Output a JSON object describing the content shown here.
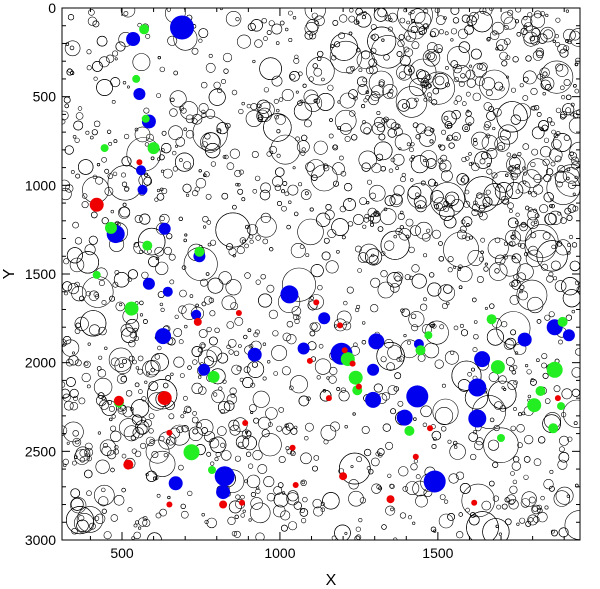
{
  "chart_data": {
    "type": "scatter",
    "xlabel": "X",
    "ylabel": "Y",
    "xlim": [
      310,
      1950
    ],
    "ylim": [
      3000,
      0
    ],
    "y_inverted": true,
    "xticks": [
      500,
      1000,
      1500
    ],
    "yticks": [
      0,
      500,
      1000,
      1500,
      2000,
      2500,
      3000
    ],
    "grid": false,
    "legend": "none",
    "colors": {
      "outline": "#000000",
      "blue": "#0000ee",
      "green": "#22ee22",
      "red": "#ee0000"
    },
    "series": [
      {
        "color": "blue",
        "points": [
          {
            "x": 535,
            "y": 175,
            "r": 7
          },
          {
            "x": 690,
            "y": 110,
            "r": 12
          },
          {
            "x": 555,
            "y": 485,
            "r": 6
          },
          {
            "x": 585,
            "y": 640,
            "r": 7
          },
          {
            "x": 560,
            "y": 915,
            "r": 5
          },
          {
            "x": 565,
            "y": 1025,
            "r": 5
          },
          {
            "x": 480,
            "y": 1275,
            "r": 9
          },
          {
            "x": 635,
            "y": 1245,
            "r": 6
          },
          {
            "x": 745,
            "y": 1400,
            "r": 6
          },
          {
            "x": 585,
            "y": 1555,
            "r": 6
          },
          {
            "x": 645,
            "y": 1600,
            "r": 5
          },
          {
            "x": 630,
            "y": 1850,
            "r": 8
          },
          {
            "x": 735,
            "y": 1730,
            "r": 5
          },
          {
            "x": 760,
            "y": 2040,
            "r": 6
          },
          {
            "x": 920,
            "y": 1955,
            "r": 7
          },
          {
            "x": 1030,
            "y": 1615,
            "r": 9
          },
          {
            "x": 1075,
            "y": 1920,
            "r": 6
          },
          {
            "x": 1140,
            "y": 1750,
            "r": 6
          },
          {
            "x": 1195,
            "y": 1950,
            "r": 11
          },
          {
            "x": 1295,
            "y": 2040,
            "r": 6
          },
          {
            "x": 1295,
            "y": 2210,
            "r": 8
          },
          {
            "x": 1305,
            "y": 1880,
            "r": 8
          },
          {
            "x": 1395,
            "y": 2310,
            "r": 8
          },
          {
            "x": 1435,
            "y": 2190,
            "r": 11
          },
          {
            "x": 1490,
            "y": 2670,
            "r": 11
          },
          {
            "x": 1625,
            "y": 2140,
            "r": 9
          },
          {
            "x": 1625,
            "y": 2315,
            "r": 9
          },
          {
            "x": 1640,
            "y": 1980,
            "r": 8
          },
          {
            "x": 1775,
            "y": 1870,
            "r": 7
          },
          {
            "x": 1870,
            "y": 1800,
            "r": 8
          },
          {
            "x": 1915,
            "y": 1845,
            "r": 6
          },
          {
            "x": 825,
            "y": 2640,
            "r": 10
          },
          {
            "x": 820,
            "y": 2730,
            "r": 7
          },
          {
            "x": 670,
            "y": 2680,
            "r": 7
          },
          {
            "x": 1440,
            "y": 1895,
            "r": 5
          }
        ]
      },
      {
        "color": "green",
        "points": [
          {
            "x": 570,
            "y": 120,
            "r": 5
          },
          {
            "x": 545,
            "y": 400,
            "r": 4
          },
          {
            "x": 575,
            "y": 625,
            "r": 4
          },
          {
            "x": 600,
            "y": 790,
            "r": 6
          },
          {
            "x": 445,
            "y": 790,
            "r": 4
          },
          {
            "x": 465,
            "y": 1240,
            "r": 6
          },
          {
            "x": 580,
            "y": 1340,
            "r": 5
          },
          {
            "x": 745,
            "y": 1375,
            "r": 5
          },
          {
            "x": 420,
            "y": 1505,
            "r": 4
          },
          {
            "x": 530,
            "y": 1695,
            "r": 7
          },
          {
            "x": 720,
            "y": 2505,
            "r": 8
          },
          {
            "x": 785,
            "y": 2605,
            "r": 4
          },
          {
            "x": 790,
            "y": 2080,
            "r": 6
          },
          {
            "x": 1215,
            "y": 1980,
            "r": 7
          },
          {
            "x": 1240,
            "y": 2085,
            "r": 7
          },
          {
            "x": 1245,
            "y": 2155,
            "r": 5
          },
          {
            "x": 1445,
            "y": 1930,
            "r": 5
          },
          {
            "x": 1470,
            "y": 1845,
            "r": 4
          },
          {
            "x": 1410,
            "y": 2385,
            "r": 5
          },
          {
            "x": 1670,
            "y": 1755,
            "r": 5
          },
          {
            "x": 1690,
            "y": 2025,
            "r": 7
          },
          {
            "x": 1700,
            "y": 2425,
            "r": 4
          },
          {
            "x": 1805,
            "y": 2240,
            "r": 7
          },
          {
            "x": 1825,
            "y": 2160,
            "r": 5
          },
          {
            "x": 1870,
            "y": 2040,
            "r": 8
          },
          {
            "x": 1895,
            "y": 1770,
            "r": 5
          },
          {
            "x": 1865,
            "y": 2370,
            "r": 5
          },
          {
            "x": 1890,
            "y": 2245,
            "r": 4
          },
          {
            "x": 490,
            "y": 2225,
            "r": 5
          }
        ]
      },
      {
        "color": "red",
        "points": [
          {
            "x": 420,
            "y": 1110,
            "r": 7
          },
          {
            "x": 555,
            "y": 870,
            "r": 3
          },
          {
            "x": 490,
            "y": 2215,
            "r": 5
          },
          {
            "x": 635,
            "y": 2200,
            "r": 7
          },
          {
            "x": 520,
            "y": 2575,
            "r": 5
          },
          {
            "x": 650,
            "y": 2395,
            "r": 3
          },
          {
            "x": 650,
            "y": 2800,
            "r": 3
          },
          {
            "x": 740,
            "y": 1770,
            "r": 4
          },
          {
            "x": 870,
            "y": 1720,
            "r": 3
          },
          {
            "x": 890,
            "y": 2340,
            "r": 3
          },
          {
            "x": 820,
            "y": 2800,
            "r": 4
          },
          {
            "x": 880,
            "y": 2790,
            "r": 3
          },
          {
            "x": 1050,
            "y": 2690,
            "r": 3
          },
          {
            "x": 1095,
            "y": 1990,
            "r": 3
          },
          {
            "x": 1115,
            "y": 1660,
            "r": 3
          },
          {
            "x": 1155,
            "y": 2200,
            "r": 3
          },
          {
            "x": 1190,
            "y": 1790,
            "r": 3
          },
          {
            "x": 1200,
            "y": 2640,
            "r": 4
          },
          {
            "x": 1230,
            "y": 2005,
            "r": 3
          },
          {
            "x": 1250,
            "y": 2135,
            "r": 3
          },
          {
            "x": 1350,
            "y": 2770,
            "r": 4
          },
          {
            "x": 1430,
            "y": 2530,
            "r": 3
          },
          {
            "x": 1475,
            "y": 2370,
            "r": 3
          },
          {
            "x": 1615,
            "y": 2790,
            "r": 3
          },
          {
            "x": 1880,
            "y": 2200,
            "r": 3
          },
          {
            "x": 1040,
            "y": 2480,
            "r": 3
          },
          {
            "x": 1205,
            "y": 1930,
            "r": 3
          }
        ]
      }
    ]
  }
}
